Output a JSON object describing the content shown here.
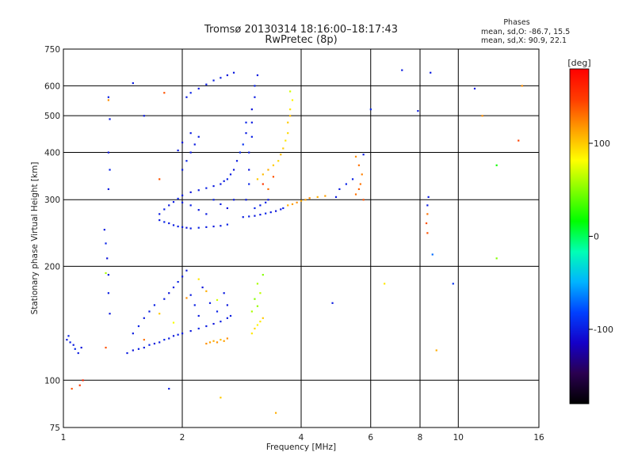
{
  "chart_data": {
    "type": "scatter",
    "title": "Tromsø 20130314 18:16:00–18:17:43",
    "subtitle": "RwPretec (8p)",
    "stats": {
      "heading": "Phases",
      "line1": "mean, sd,O: -86.7, 15.5",
      "line2": "mean, sd,X: 90.9, 22.1"
    },
    "xlabel": "Frequency [MHz]",
    "ylabel": "Stationary phase Virtual Height [km]",
    "x_scale": "log",
    "y_scale": "log",
    "xlim": [
      1,
      16
    ],
    "ylim": [
      75,
      750
    ],
    "x_ticks": [
      1,
      2,
      4,
      6,
      8,
      10,
      16
    ],
    "x_tick_labels": [
      "1",
      "2",
      "4",
      "6",
      "8",
      "10",
      "16"
    ],
    "y_ticks": [
      75,
      100,
      200,
      300,
      400,
      500,
      600,
      750
    ],
    "y_tick_labels": [
      "75",
      "100",
      "200",
      "300",
      "400",
      "500",
      "600",
      "750"
    ],
    "x_gridlines": [
      2,
      4,
      6,
      8,
      10
    ],
    "y_gridlines": [
      100,
      200,
      300,
      400,
      500,
      600
    ],
    "colorbar": {
      "label": "[deg]",
      "range": [
        -180,
        180
      ],
      "ticks": [
        100,
        0,
        -100
      ],
      "tick_labels": [
        "100",
        "0",
        "-100"
      ],
      "colormap": [
        "#000000",
        "#2a0050",
        "#1400c8",
        "#0040ff",
        "#00b4ff",
        "#00ffb4",
        "#00ff00",
        "#80ff00",
        "#ffff00",
        "#ffa000",
        "#ff3c00",
        "#ff0000"
      ]
    },
    "series": [
      {
        "points": [
          [
            1.02,
            128,
            -100
          ],
          [
            1.04,
            126,
            -98
          ],
          [
            1.06,
            124,
            -102
          ],
          [
            1.07,
            121,
            -95
          ],
          [
            1.09,
            118,
            -100
          ],
          [
            1.11,
            122,
            -104
          ],
          [
            1.03,
            131,
            -97
          ],
          [
            1.27,
            250,
            -100
          ],
          [
            1.28,
            230,
            -96
          ],
          [
            1.29,
            210,
            -104
          ],
          [
            1.3,
            190,
            -100
          ],
          [
            1.3,
            170,
            -98
          ],
          [
            1.31,
            150,
            -102
          ],
          [
            1.3,
            320,
            -100
          ],
          [
            1.31,
            360,
            -96
          ],
          [
            1.3,
            400,
            -105
          ],
          [
            1.31,
            490,
            -100
          ],
          [
            1.3,
            560,
            -98
          ],
          [
            1.28,
            192,
            60
          ],
          [
            1.3,
            550,
            120
          ],
          [
            1.28,
            122,
            140
          ],
          [
            1.45,
            118,
            -100
          ],
          [
            1.5,
            120,
            -104
          ],
          [
            1.55,
            121,
            -98
          ],
          [
            1.6,
            122,
            -100
          ],
          [
            1.65,
            124,
            -97
          ],
          [
            1.7,
            125,
            -102
          ],
          [
            1.75,
            126,
            -100
          ],
          [
            1.8,
            128,
            -95
          ],
          [
            1.85,
            129,
            -100
          ],
          [
            1.9,
            131,
            -103
          ],
          [
            1.95,
            132,
            -98
          ],
          [
            2.0,
            133,
            -100
          ],
          [
            2.1,
            135,
            -102
          ],
          [
            2.2,
            137,
            -96
          ],
          [
            2.3,
            139,
            -100
          ],
          [
            2.4,
            141,
            -104
          ],
          [
            2.5,
            143,
            -98
          ],
          [
            2.6,
            146,
            -100
          ],
          [
            1.5,
            133,
            -100
          ],
          [
            1.55,
            139,
            -96
          ],
          [
            1.6,
            146,
            -102
          ],
          [
            1.65,
            152,
            -100
          ],
          [
            1.7,
            158,
            -98
          ],
          [
            1.8,
            164,
            -100
          ],
          [
            1.85,
            170,
            -104
          ],
          [
            1.9,
            176,
            -100
          ],
          [
            1.95,
            182,
            -97
          ],
          [
            2.0,
            188,
            -100
          ],
          [
            2.05,
            195,
            -102
          ],
          [
            2.1,
            168,
            -100
          ],
          [
            2.15,
            158,
            -98
          ],
          [
            2.2,
            148,
            -100
          ],
          [
            2.25,
            176,
            -104
          ],
          [
            2.35,
            160,
            -100
          ],
          [
            2.45,
            152,
            -96
          ],
          [
            2.55,
            170,
            -100
          ],
          [
            2.6,
            158,
            -102
          ],
          [
            2.65,
            148,
            -100
          ],
          [
            1.75,
            150,
            100
          ],
          [
            1.9,
            142,
            80
          ],
          [
            2.05,
            165,
            120
          ],
          [
            2.2,
            185,
            90
          ],
          [
            2.3,
            172,
            110
          ],
          [
            1.6,
            128,
            130
          ],
          [
            2.45,
            163,
            70
          ],
          [
            2.3,
            125,
            120
          ],
          [
            2.35,
            126,
            115
          ],
          [
            2.4,
            127,
            110
          ],
          [
            2.45,
            126,
            120
          ],
          [
            2.5,
            128,
            105
          ],
          [
            2.55,
            127,
            115
          ],
          [
            2.6,
            129,
            120
          ],
          [
            3.0,
            133,
            90
          ],
          [
            3.05,
            137,
            95
          ],
          [
            3.1,
            140,
            85
          ],
          [
            3.15,
            143,
            90
          ],
          [
            3.2,
            146,
            100
          ],
          [
            3.0,
            152,
            60
          ],
          [
            3.1,
            157,
            55
          ],
          [
            3.05,
            164,
            50
          ],
          [
            3.15,
            170,
            65
          ],
          [
            3.1,
            180,
            60
          ],
          [
            3.2,
            190,
            50
          ],
          [
            1.75,
            265,
            -100
          ],
          [
            1.8,
            262,
            -96
          ],
          [
            1.85,
            260,
            -102
          ],
          [
            1.9,
            257,
            -100
          ],
          [
            1.95,
            255,
            -98
          ],
          [
            2.0,
            254,
            -100
          ],
          [
            2.05,
            253,
            -104
          ],
          [
            2.1,
            252,
            -100
          ],
          [
            2.2,
            253,
            -97
          ],
          [
            2.3,
            254,
            -100
          ],
          [
            2.4,
            255,
            -102
          ],
          [
            2.5,
            256,
            -100
          ],
          [
            2.6,
            258,
            -96
          ],
          [
            1.75,
            275,
            -100
          ],
          [
            1.8,
            283,
            -98
          ],
          [
            1.85,
            290,
            -102
          ],
          [
            1.9,
            296,
            -100
          ],
          [
            1.95,
            302,
            -96
          ],
          [
            2.0,
            308,
            -100
          ],
          [
            2.1,
            314,
            -104
          ],
          [
            2.2,
            318,
            -100
          ],
          [
            2.3,
            322,
            -98
          ],
          [
            2.4,
            326,
            -100
          ],
          [
            2.5,
            330,
            -102
          ],
          [
            2.55,
            336,
            -100
          ],
          [
            2.6,
            340,
            -96
          ],
          [
            2.65,
            350,
            -100
          ],
          [
            2.7,
            360,
            -104
          ],
          [
            2.0,
            295,
            -100
          ],
          [
            2.1,
            290,
            -98
          ],
          [
            2.2,
            282,
            -102
          ],
          [
            2.3,
            275,
            -100
          ],
          [
            2.4,
            300,
            -96
          ],
          [
            2.5,
            292,
            -100
          ],
          [
            2.6,
            285,
            -104
          ],
          [
            2.7,
            300,
            -100
          ],
          [
            2.0,
            360,
            -100
          ],
          [
            2.05,
            380,
            -96
          ],
          [
            2.1,
            400,
            -102
          ],
          [
            2.15,
            420,
            -100
          ],
          [
            2.2,
            440,
            -98
          ],
          [
            2.1,
            450,
            -100
          ],
          [
            2.0,
            425,
            -104
          ],
          [
            1.95,
            405,
            -100
          ],
          [
            2.05,
            560,
            -100
          ],
          [
            2.1,
            575,
            -96
          ],
          [
            2.2,
            590,
            -102
          ],
          [
            2.3,
            605,
            -100
          ],
          [
            2.4,
            620,
            -98
          ],
          [
            2.5,
            630,
            -100
          ],
          [
            2.6,
            640,
            -104
          ],
          [
            2.7,
            650,
            -100
          ],
          [
            2.85,
            270,
            -100
          ],
          [
            2.95,
            271,
            -98
          ],
          [
            3.05,
            272,
            -102
          ],
          [
            3.15,
            274,
            -100
          ],
          [
            3.25,
            276,
            -96
          ],
          [
            3.35,
            278,
            -100
          ],
          [
            3.45,
            280,
            -104
          ],
          [
            3.55,
            283,
            -100
          ],
          [
            3.6,
            285,
            -98
          ],
          [
            2.9,
            300,
            -100
          ],
          [
            2.95,
            330,
            -96
          ],
          [
            2.95,
            360,
            -102
          ],
          [
            2.95,
            400,
            -100
          ],
          [
            3.0,
            440,
            -98
          ],
          [
            3.0,
            480,
            -100
          ],
          [
            3.0,
            520,
            -104
          ],
          [
            3.05,
            560,
            -100
          ],
          [
            3.05,
            600,
            -96
          ],
          [
            3.1,
            640,
            -100
          ],
          [
            2.85,
            420,
            -90
          ],
          [
            2.8,
            400,
            -95
          ],
          [
            2.75,
            380,
            -100
          ],
          [
            2.9,
            450,
            -100
          ],
          [
            2.9,
            480,
            -96
          ],
          [
            3.05,
            285,
            -95
          ],
          [
            3.15,
            290,
            -100
          ],
          [
            3.25,
            295,
            -98
          ],
          [
            3.3,
            300,
            -102
          ],
          [
            3.1,
            340,
            100
          ],
          [
            3.2,
            350,
            105
          ],
          [
            3.3,
            360,
            110
          ],
          [
            3.4,
            370,
            100
          ],
          [
            3.5,
            380,
            95
          ],
          [
            3.55,
            395,
            105
          ],
          [
            3.6,
            410,
            100
          ],
          [
            3.65,
            430,
            90
          ],
          [
            3.7,
            450,
            95
          ],
          [
            3.7,
            480,
            100
          ],
          [
            3.75,
            500,
            105
          ],
          [
            3.75,
            520,
            90
          ],
          [
            3.8,
            550,
            85
          ],
          [
            3.75,
            580,
            70
          ],
          [
            3.2,
            330,
            150
          ],
          [
            3.4,
            345,
            140
          ],
          [
            3.3,
            320,
            130
          ],
          [
            3.7,
            290,
            110
          ],
          [
            3.8,
            292,
            115
          ],
          [
            3.9,
            295,
            120
          ],
          [
            4.0,
            298,
            110
          ],
          [
            4.1,
            300,
            115
          ],
          [
            4.2,
            303,
            120
          ],
          [
            4.4,
            305,
            110
          ],
          [
            4.6,
            307,
            115
          ],
          [
            5.5,
            310,
            130
          ],
          [
            5.6,
            320,
            135
          ],
          [
            5.65,
            330,
            130
          ],
          [
            5.7,
            350,
            125
          ],
          [
            5.6,
            370,
            130
          ],
          [
            5.5,
            390,
            120
          ],
          [
            5.75,
            300,
            140
          ],
          [
            5.0,
            320,
            -100
          ],
          [
            5.2,
            330,
            -96
          ],
          [
            5.4,
            340,
            -98
          ],
          [
            5.75,
            395,
            -100
          ],
          [
            6.0,
            520,
            -95
          ],
          [
            4.9,
            305,
            -100
          ],
          [
            8.3,
            260,
            140
          ],
          [
            8.35,
            275,
            130
          ],
          [
            8.35,
            290,
            -100
          ],
          [
            8.4,
            305,
            -100
          ],
          [
            8.35,
            245,
            140
          ],
          [
            8.6,
            215,
            -70
          ],
          [
            1.12,
            100,
            160
          ],
          [
            1.1,
            97,
            150
          ],
          [
            1.05,
            95,
            140
          ],
          [
            6.5,
            180,
            90
          ],
          [
            4.8,
            160,
            -100
          ],
          [
            8.8,
            120,
            110
          ],
          [
            11.0,
            590,
            -100
          ],
          [
            11.5,
            500,
            120
          ],
          [
            12.5,
            210,
            50
          ],
          [
            14.5,
            600,
            120
          ],
          [
            14.2,
            430,
            145
          ],
          [
            12.5,
            370,
            20
          ],
          [
            9.7,
            180,
            -90
          ],
          [
            7.2,
            660,
            -100
          ],
          [
            8.5,
            650,
            -100
          ],
          [
            7.9,
            515,
            -100
          ],
          [
            1.5,
            610,
            -100
          ],
          [
            1.6,
            500,
            -100
          ],
          [
            1.8,
            575,
            140
          ],
          [
            1.75,
            340,
            140
          ],
          [
            1.85,
            95,
            -100
          ],
          [
            2.5,
            90,
            100
          ],
          [
            3.45,
            82,
            110
          ]
        ]
      }
    ]
  }
}
